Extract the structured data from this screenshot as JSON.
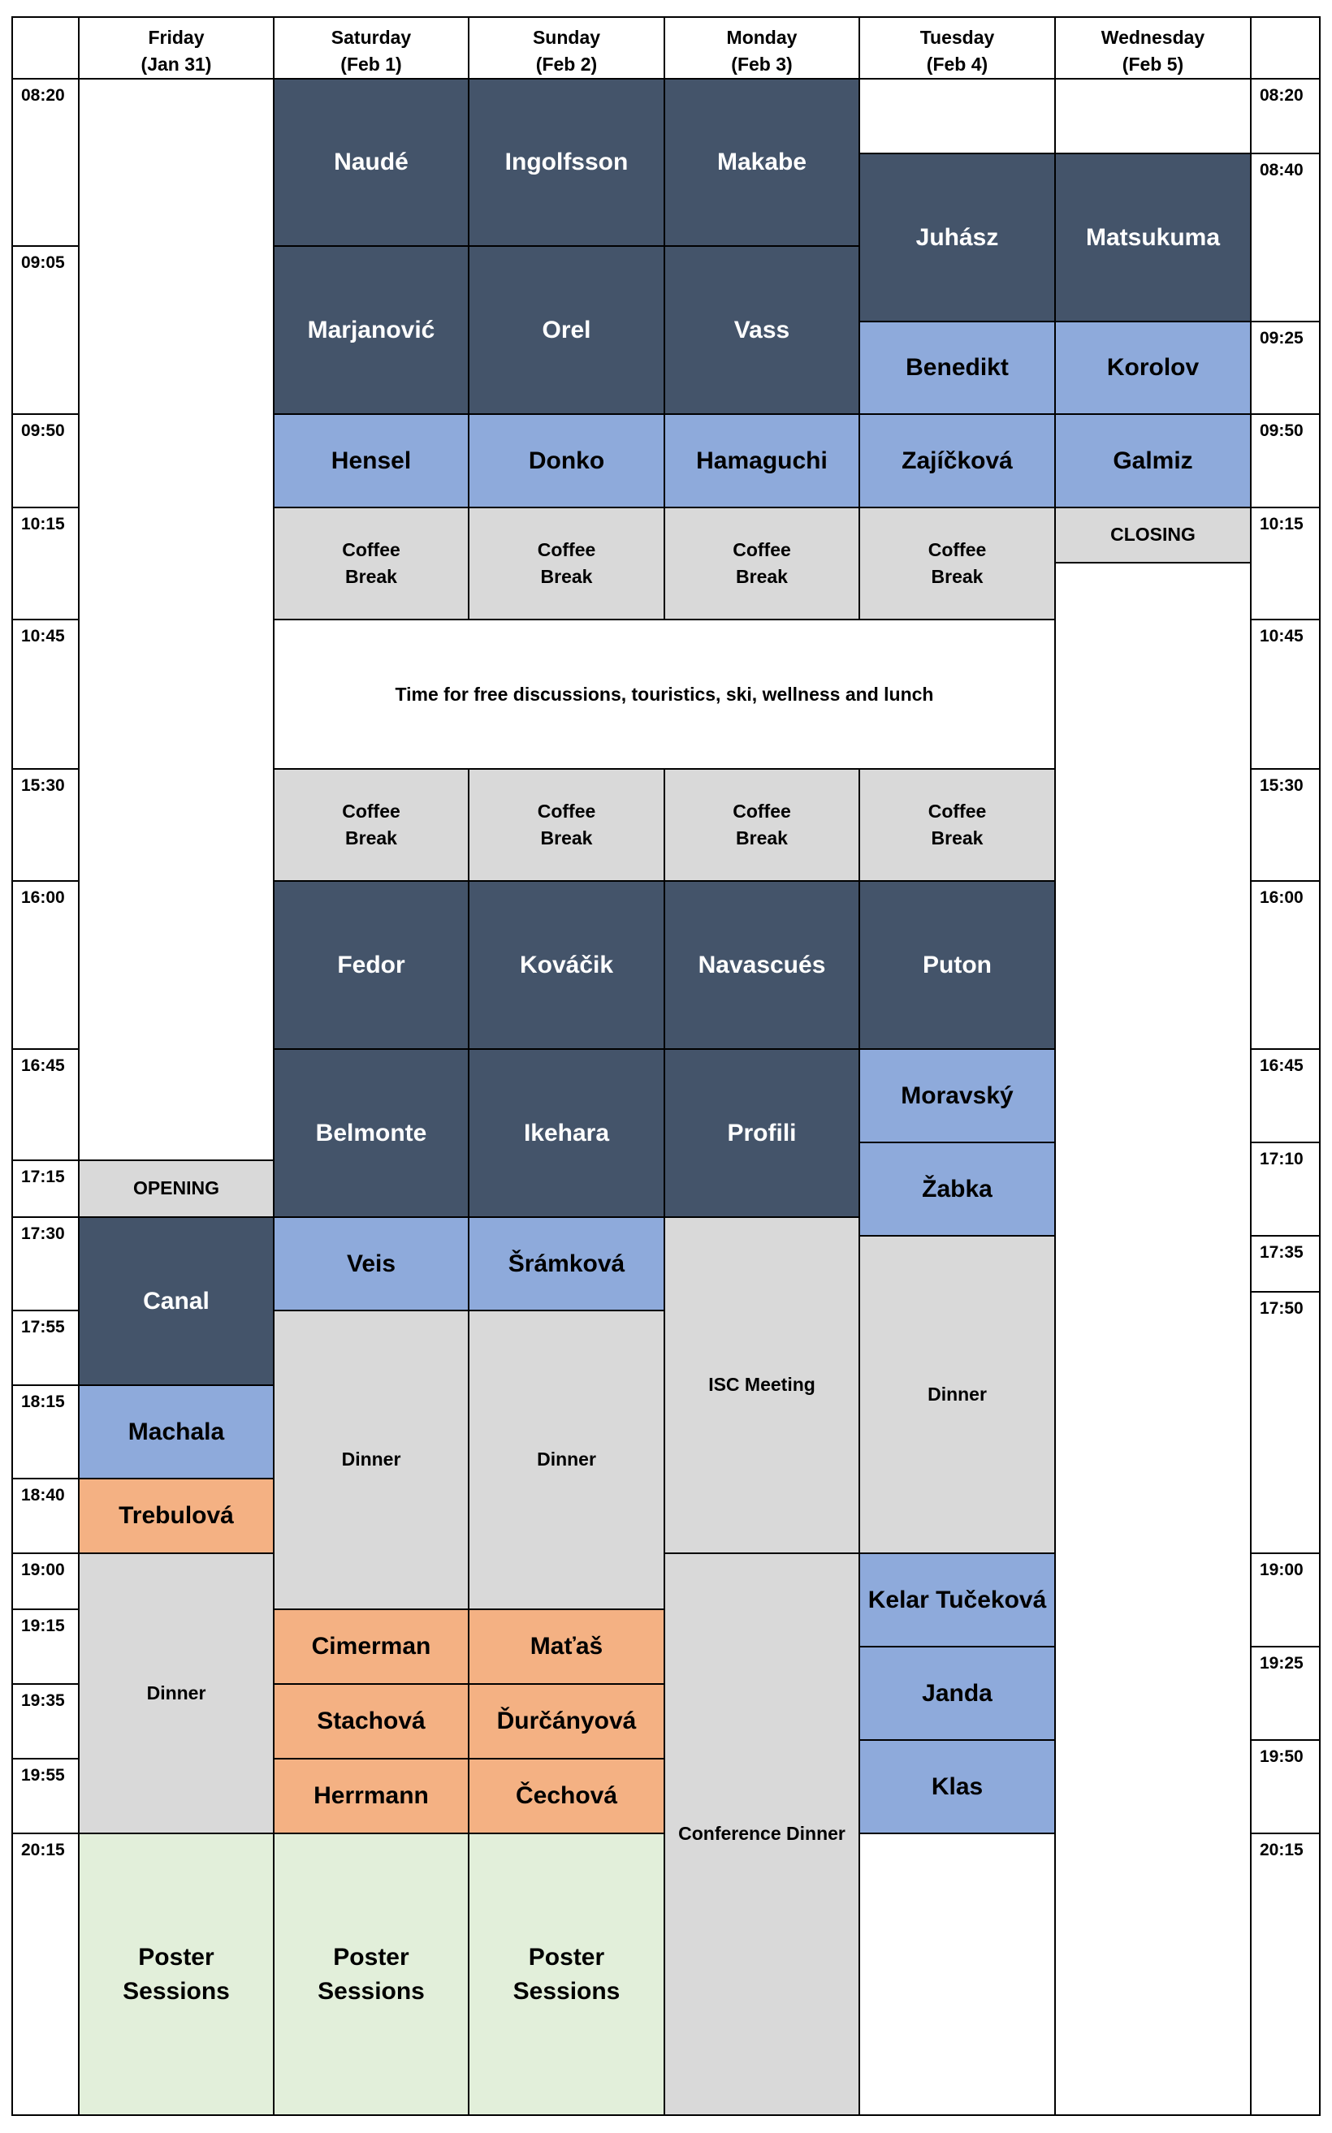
{
  "days": [
    {
      "name": "Friday",
      "date": "(Jan 31)"
    },
    {
      "name": "Saturday",
      "date": "(Feb 1)"
    },
    {
      "name": "Sunday",
      "date": "(Feb 2)"
    },
    {
      "name": "Monday",
      "date": "(Feb 3)"
    },
    {
      "name": "Tuesday",
      "date": "(Feb 4)"
    },
    {
      "name": "Wednesday",
      "date": "(Feb 5)"
    }
  ],
  "left_times": [
    "08:20",
    "09:05",
    "09:50",
    "10:15",
    "10:45",
    "15:30",
    "16:00",
    "16:45",
    "17:15",
    "17:30",
    "17:55",
    "18:15",
    "18:40",
    "19:00",
    "19:15",
    "19:35",
    "19:55",
    "20:15"
  ],
  "right_times": [
    "08:20",
    "08:40",
    "09:25",
    "09:50",
    "10:15",
    "10:45",
    "15:30",
    "16:00",
    "16:45",
    "17:10",
    "17:35",
    "17:50",
    "19:00",
    "19:25",
    "19:50",
    "20:15"
  ],
  "events": [
    {
      "day": 0,
      "label": "OPENING",
      "kind": "grey"
    },
    {
      "day": 0,
      "label": "Canal",
      "kind": "dark"
    },
    {
      "day": 0,
      "label": "Machala",
      "kind": "light"
    },
    {
      "day": 0,
      "label": "Trebulová",
      "kind": "orange"
    },
    {
      "day": 0,
      "label": "Dinner",
      "kind": "grey"
    },
    {
      "day": 0,
      "label": "Poster\nSessions",
      "kind": "green"
    },
    {
      "day": 1,
      "label": "Naudé",
      "kind": "dark"
    },
    {
      "day": 1,
      "label": "Marjanović",
      "kind": "dark"
    },
    {
      "day": 1,
      "label": "Hensel",
      "kind": "light"
    },
    {
      "day": 1,
      "label": "Coffee\nBreak",
      "kind": "grey"
    },
    {
      "day": 1,
      "label": "Coffee\nBreak",
      "kind": "grey"
    },
    {
      "day": 1,
      "label": "Fedor",
      "kind": "dark"
    },
    {
      "day": 1,
      "label": "Belmonte",
      "kind": "dark"
    },
    {
      "day": 1,
      "label": "Veis",
      "kind": "light"
    },
    {
      "day": 1,
      "label": "Dinner",
      "kind": "grey"
    },
    {
      "day": 1,
      "label": "Cimerman",
      "kind": "orange"
    },
    {
      "day": 1,
      "label": "Stachová",
      "kind": "orange"
    },
    {
      "day": 1,
      "label": "Herrmann",
      "kind": "orange"
    },
    {
      "day": 1,
      "label": "Poster\nSessions",
      "kind": "green"
    },
    {
      "day": 2,
      "label": "Ingolfsson",
      "kind": "dark"
    },
    {
      "day": 2,
      "label": "Orel",
      "kind": "dark"
    },
    {
      "day": 2,
      "label": "Donko",
      "kind": "light"
    },
    {
      "day": 2,
      "label": "Coffee\nBreak",
      "kind": "grey"
    },
    {
      "day": 2,
      "label": "Coffee\nBreak",
      "kind": "grey"
    },
    {
      "day": 2,
      "label": "Kováčik",
      "kind": "dark"
    },
    {
      "day": 2,
      "label": "Ikehara",
      "kind": "dark"
    },
    {
      "day": 2,
      "label": "Šrámková",
      "kind": "light"
    },
    {
      "day": 2,
      "label": "Dinner",
      "kind": "grey"
    },
    {
      "day": 2,
      "label": "Maťaš",
      "kind": "orange"
    },
    {
      "day": 2,
      "label": "Ďurčányová",
      "kind": "orange"
    },
    {
      "day": 2,
      "label": "Čechová",
      "kind": "orange"
    },
    {
      "day": 2,
      "label": "Poster\nSessions",
      "kind": "green"
    },
    {
      "day": 3,
      "label": "Makabe",
      "kind": "dark"
    },
    {
      "day": 3,
      "label": "Vass",
      "kind": "dark"
    },
    {
      "day": 3,
      "label": "Hamaguchi",
      "kind": "light"
    },
    {
      "day": 3,
      "label": "Coffee\nBreak",
      "kind": "grey"
    },
    {
      "day": 3,
      "label": "Coffee\nBreak",
      "kind": "grey"
    },
    {
      "day": 3,
      "label": "Navascués",
      "kind": "dark"
    },
    {
      "day": 3,
      "label": "Profili",
      "kind": "dark"
    },
    {
      "day": 3,
      "label": "ISC Meeting",
      "kind": "grey"
    },
    {
      "day": 3,
      "label": "Conference Dinner",
      "kind": "grey"
    },
    {
      "day": 4,
      "label": "Juhász",
      "kind": "dark"
    },
    {
      "day": 4,
      "label": "Benedikt",
      "kind": "light"
    },
    {
      "day": 4,
      "label": "Zajíčková",
      "kind": "light"
    },
    {
      "day": 4,
      "label": "Coffee\nBreak",
      "kind": "grey"
    },
    {
      "day": 4,
      "label": "Coffee\nBreak",
      "kind": "grey"
    },
    {
      "day": 4,
      "label": "Puton",
      "kind": "dark"
    },
    {
      "day": 4,
      "label": "Moravský",
      "kind": "light"
    },
    {
      "day": 4,
      "label": "Žabka",
      "kind": "light"
    },
    {
      "day": 4,
      "label": "Dinner",
      "kind": "grey"
    },
    {
      "day": 4,
      "label": "Kelar Tučeková",
      "kind": "light"
    },
    {
      "day": 4,
      "label": "Janda",
      "kind": "light"
    },
    {
      "day": 4,
      "label": "Klas",
      "kind": "light"
    },
    {
      "day": 5,
      "label": "Matsukuma",
      "kind": "dark"
    },
    {
      "day": 5,
      "label": "Korolov",
      "kind": "light"
    },
    {
      "day": 5,
      "label": "Galmiz",
      "kind": "light"
    },
    {
      "day": 5,
      "label": "CLOSING",
      "kind": "grey"
    }
  ],
  "free_time": "Time for free discussions, touristics, ski, wellness and lunch"
}
